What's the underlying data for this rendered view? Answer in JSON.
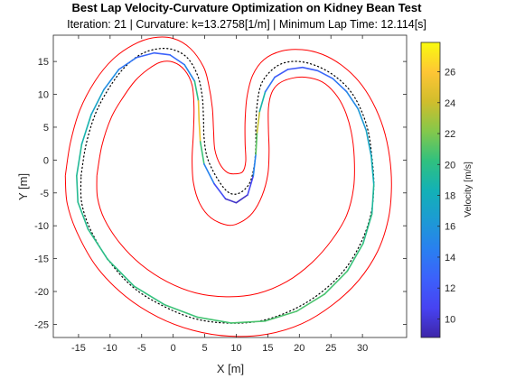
{
  "chart_data": {
    "type": "line",
    "title": "Best Lap Velocity-Curvature Optimization on Kidney Bean Test",
    "subtitle": "Iteration: 21 | Curvature: k=13.2758[1/m] | Minimum Lap Time: 12.114[s]",
    "xlabel": "X [m]",
    "ylabel": "Y [m]",
    "xlim": [
      -19,
      37
    ],
    "ylim": [
      -27,
      19
    ],
    "xticks": [
      -15,
      -10,
      -5,
      0,
      5,
      10,
      15,
      20,
      25,
      30
    ],
    "yticks": [
      15,
      10,
      5,
      0,
      -5,
      -10,
      -15,
      -20,
      -25
    ],
    "grid": false,
    "colorbar": {
      "label": "Velocity [m/s]",
      "range": [
        8.8,
        27.9
      ],
      "ticks": [
        10,
        12,
        14,
        16,
        18,
        20,
        22,
        24,
        26
      ],
      "colormap": "parula",
      "colors": [
        "#3e26a8",
        "#4743f2",
        "#3c61fb",
        "#2980f0",
        "#1c9bd3",
        "#13b1b5",
        "#31c17e",
        "#85c84a",
        "#d1bd2c",
        "#fec635",
        "#f9fb0e"
      ]
    },
    "series": [
      {
        "role": "outer-boundary",
        "color": "#ff0000",
        "x": [
          -17.1,
          -16.3,
          -14.8,
          -12.4,
          -9.6,
          -6.4,
          -3.2,
          0,
          2.7,
          4.8,
          5.6,
          6.2,
          6.4,
          6.6,
          7.4,
          8.6,
          9.8,
          11.0,
          11.5,
          11.4,
          11.4,
          11.7,
          12.6,
          14.4,
          17.2,
          20.4,
          23.6,
          26.6,
          29.4,
          31.6,
          33.3,
          34.3,
          34.6,
          34.1,
          32.4,
          29.4,
          25.3,
          20.4,
          14.9,
          8.9,
          3.1,
          -2.4,
          -7.6,
          -12.1,
          -15.2,
          -16.8,
          -17.1
        ],
        "y": [
          -2.4,
          2.6,
          7.6,
          12.0,
          15.3,
          17.5,
          18.6,
          18.5,
          17.0,
          14.2,
          11.6,
          8.0,
          4.5,
          1.6,
          -0.6,
          -1.9,
          -2.1,
          -1.8,
          -0.2,
          2.6,
          6.0,
          9.6,
          12.9,
          15.3,
          16.6,
          16.8,
          16.1,
          14.5,
          12.0,
          8.8,
          4.9,
          0.5,
          -4.2,
          -9.0,
          -13.9,
          -18.3,
          -22.0,
          -24.9,
          -26.5,
          -26.8,
          -25.9,
          -23.9,
          -20.7,
          -16.3,
          -11.1,
          -6.6,
          -2.4
        ]
      },
      {
        "role": "centerline",
        "color": "#000000",
        "style": "dotted",
        "x": [
          -14.6,
          -13.8,
          -12.3,
          -10.2,
          -7.9,
          -5.3,
          -2.6,
          0,
          2.3,
          3.9,
          4.6,
          4.8,
          4.9,
          5.4,
          6.8,
          8.6,
          10.3,
          12.0,
          12.8,
          13.1,
          13.1,
          13.3,
          13.9,
          15.3,
          17.3,
          19.9,
          22.8,
          25.6,
          28.0,
          29.7,
          30.9,
          31.5,
          31.8,
          31.3,
          29.6,
          26.9,
          23.1,
          18.7,
          13.7,
          8.4,
          3.3,
          -1.6,
          -6.3,
          -10.2,
          -13.1,
          -14.5,
          -14.6
        ],
        "y": [
          -2.4,
          2.4,
          7.1,
          10.9,
          13.9,
          16.0,
          16.9,
          16.8,
          15.5,
          12.8,
          9.7,
          6.5,
          3.4,
          0.4,
          -2.5,
          -4.8,
          -5.1,
          -3.7,
          -1.1,
          2.1,
          5.2,
          8.4,
          11.4,
          13.4,
          14.7,
          15.0,
          14.3,
          12.8,
          10.6,
          7.8,
          4.4,
          0.4,
          -3.9,
          -8.4,
          -12.9,
          -17.0,
          -20.4,
          -22.9,
          -24.5,
          -24.8,
          -24.1,
          -22.2,
          -19.4,
          -15.3,
          -10.6,
          -6.5,
          -2.4
        ]
      },
      {
        "role": "inner-boundary",
        "color": "#ff0000",
        "x": [
          -12.1,
          -11.3,
          -9.8,
          -7.9,
          -6.0,
          -4.0,
          -2.0,
          0,
          1.8,
          3.0,
          3.3,
          3.2,
          3.0,
          3.2,
          4.2,
          6.0,
          8.6,
          10.6,
          12.6,
          14.1,
          15.0,
          15.2,
          15.1,
          15.1,
          15.6,
          16.7,
          18.6,
          21.0,
          23.6,
          25.6,
          27.1,
          28.2,
          28.7,
          28.6,
          27.5,
          25.2,
          22.0,
          18.0,
          13.4,
          8.4,
          3.5,
          -1.0,
          -5.1,
          -8.4,
          -10.9,
          -12.0,
          -12.1
        ],
        "y": [
          -2.4,
          2.2,
          6.5,
          9.6,
          12.1,
          13.8,
          14.9,
          14.9,
          13.7,
          11.4,
          8.0,
          4.0,
          0.2,
          -3.4,
          -6.6,
          -8.8,
          -9.9,
          -9.5,
          -8.0,
          -5.4,
          -2.2,
          1.3,
          4.6,
          7.9,
          10.2,
          11.6,
          12.4,
          12.6,
          11.9,
          10.2,
          7.8,
          4.4,
          0.4,
          -4.2,
          -8.4,
          -12.1,
          -15.6,
          -18.5,
          -20.3,
          -20.8,
          -20.2,
          -18.5,
          -15.9,
          -12.7,
          -9.0,
          -5.7,
          -2.4
        ]
      },
      {
        "role": "racing-line",
        "colormap": "velocity",
        "x": [
          -15.3,
          -14.5,
          -13.0,
          -11.0,
          -8.6,
          -5.8,
          -3.0,
          -0.5,
          1.8,
          3.4,
          4.0,
          4.1,
          4.3,
          4.9,
          6.5,
          8.3,
          10.0,
          11.8,
          12.7,
          13.1,
          13.3,
          13.7,
          14.6,
          16.1,
          18.2,
          20.5,
          22.9,
          25.3,
          27.5,
          29.3,
          30.6,
          31.4,
          31.8,
          31.5,
          30.1,
          27.6,
          24.0,
          19.6,
          14.6,
          9.2,
          3.8,
          -1.4,
          -6.2,
          -10.4,
          -13.5,
          -15.1,
          -15.3
        ],
        "y": [
          -2.4,
          2.4,
          6.9,
          10.7,
          13.8,
          15.6,
          16.3,
          16.0,
          14.5,
          12.0,
          9.0,
          6.0,
          2.8,
          -0.6,
          -3.6,
          -5.9,
          -6.5,
          -5.3,
          -2.4,
          0.9,
          4.2,
          7.4,
          10.4,
          12.6,
          13.8,
          14.1,
          13.6,
          12.4,
          10.4,
          7.8,
          4.5,
          0.6,
          -3.7,
          -8.2,
          -12.7,
          -16.9,
          -20.4,
          -23.0,
          -24.5,
          -24.8,
          -23.9,
          -22.0,
          -19.2,
          -15.1,
          -10.5,
          -6.4,
          -2.4
        ],
        "velocity": [
          19.5,
          19.2,
          18.0,
          16.4,
          14.6,
          13.2,
          12.6,
          12.8,
          13.6,
          16.5,
          23.5,
          26.5,
          24.0,
          17.0,
          12.5,
          10.2,
          9.2,
          9.8,
          12.0,
          17.5,
          25.0,
          22.5,
          15.0,
          12.3,
          12.0,
          12.2,
          12.6,
          13.4,
          14.6,
          15.8,
          16.8,
          17.8,
          18.8,
          19.6,
          20.2,
          20.6,
          20.8,
          20.9,
          20.9,
          20.8,
          20.6,
          20.4,
          20.2,
          20.0,
          19.8,
          19.6,
          19.5
        ]
      }
    ]
  }
}
